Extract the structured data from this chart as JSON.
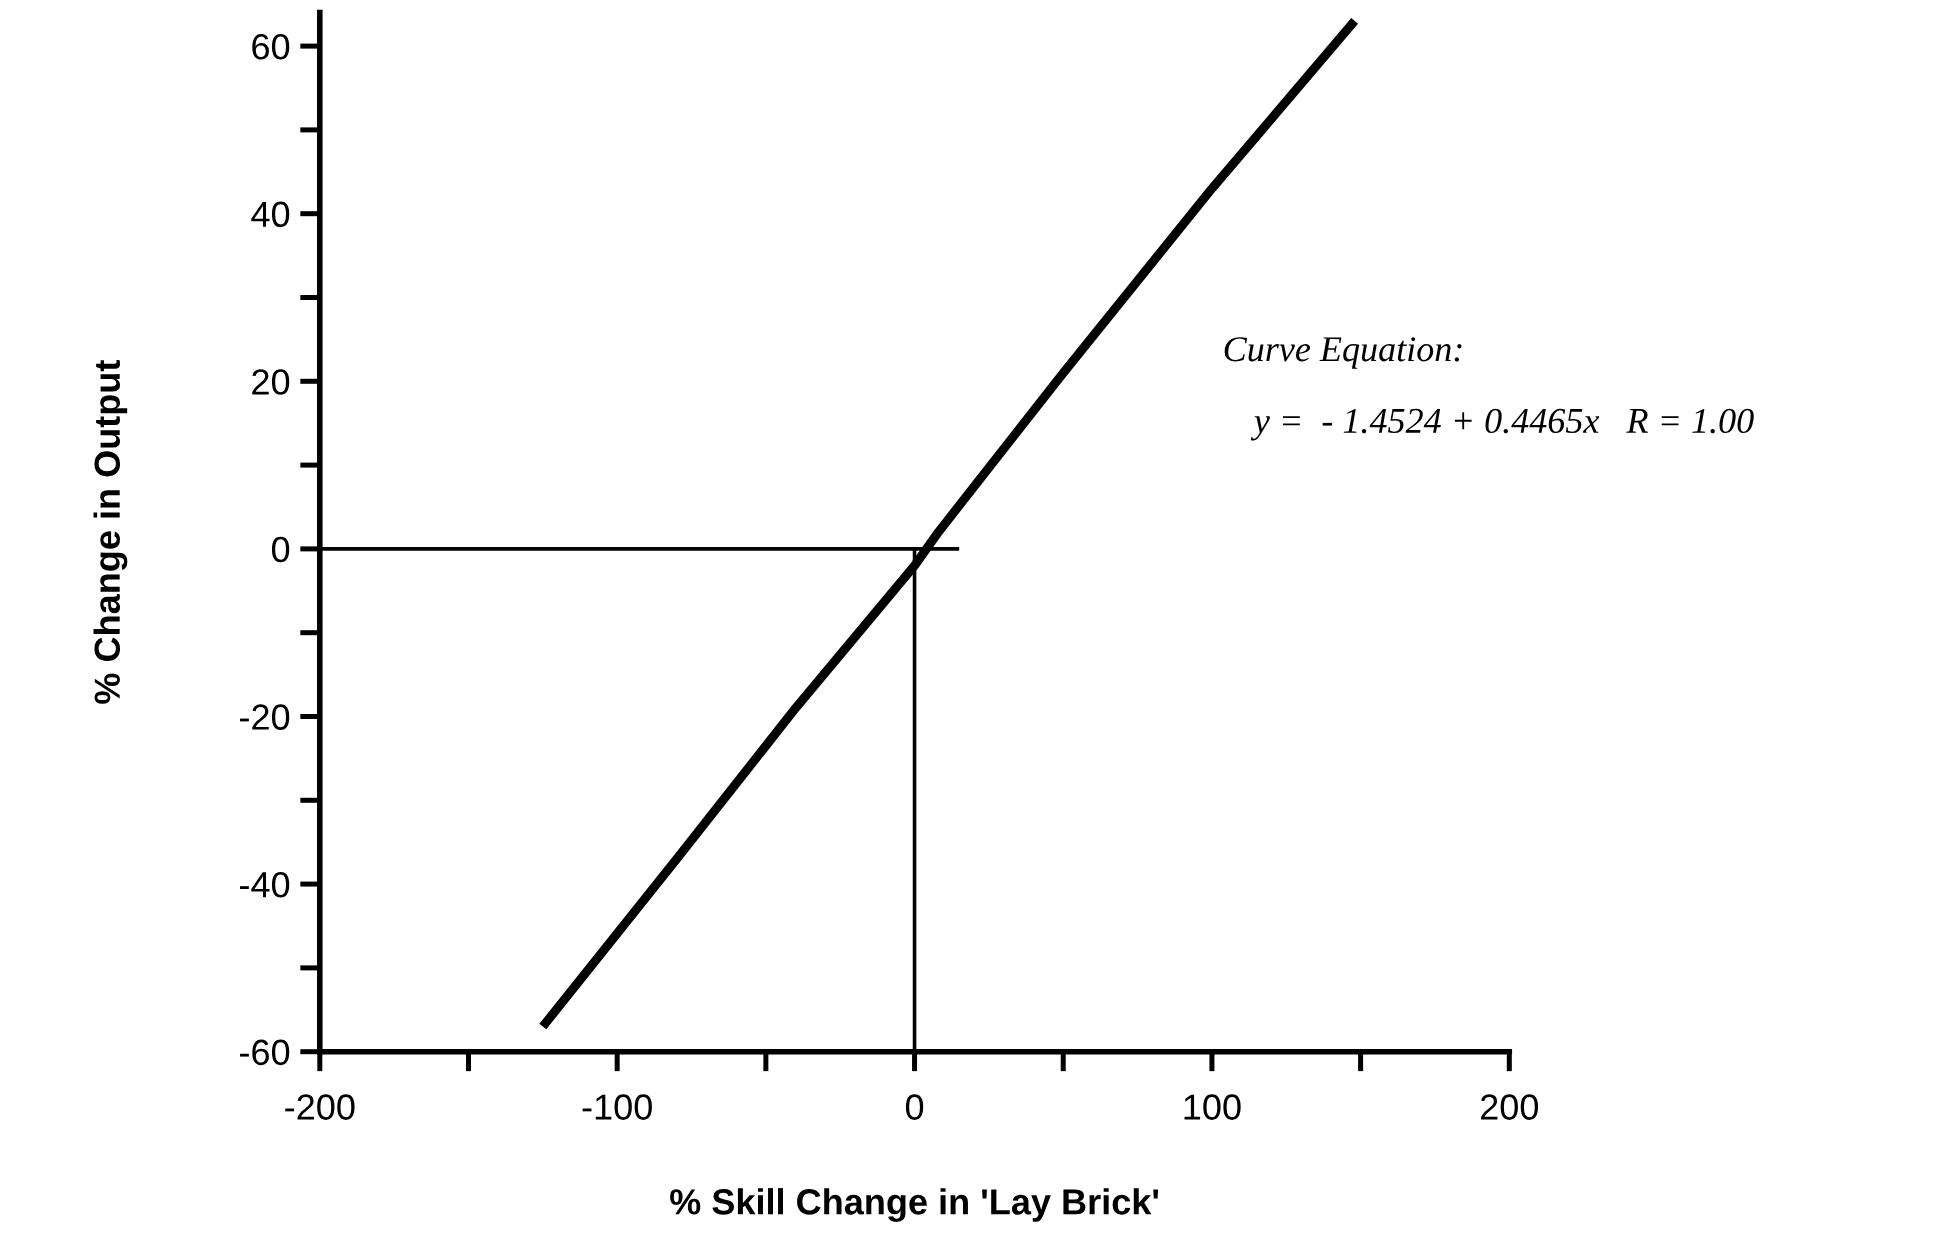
{
  "chart_data": {
    "type": "line",
    "xlabel": "% Skill Change in 'Lay Brick'",
    "ylabel": "% Change in Output",
    "annotations": [
      "Curve Equation:",
      "y =  - 1.4524 + 0.4465x   R = 1.00"
    ],
    "series": [
      {
        "color": "#000000",
        "x": [
          -125,
          -80,
          -40,
          0,
          8,
          50,
          100,
          148
        ],
        "values": [
          -57,
          -37,
          -19,
          -2,
          2,
          21,
          43,
          63
        ]
      },
      {
        "color": "#000000",
        "x": [
          -200,
          15
        ],
        "values": [
          0,
          0
        ]
      },
      {
        "color": "#000000",
        "x": [
          0,
          0
        ],
        "values": [
          -60,
          0
        ]
      }
    ],
    "xlim": [
      -200,
      200
    ],
    "ylim": [
      -60,
      64
    ],
    "xticks": [
      -200,
      {
        "value": -150,
        "label": null
      },
      -100,
      {
        "value": -50,
        "label": null
      },
      0,
      {
        "value": 50,
        "label": null
      },
      100,
      {
        "value": 150,
        "label": null
      },
      200
    ],
    "yticks": [
      -60,
      {
        "value": -50,
        "label": null
      },
      -40,
      {
        "value": -30,
        "label": null
      },
      -20,
      {
        "value": -10,
        "label": null
      },
      0,
      {
        "value": 10,
        "label": null
      },
      20,
      {
        "value": 30,
        "label": null
      },
      40,
      {
        "value": 50,
        "label": null
      },
      60
    ],
    "grid": false,
    "legend": false,
    "marker": "none",
    "line_style": "solid"
  }
}
